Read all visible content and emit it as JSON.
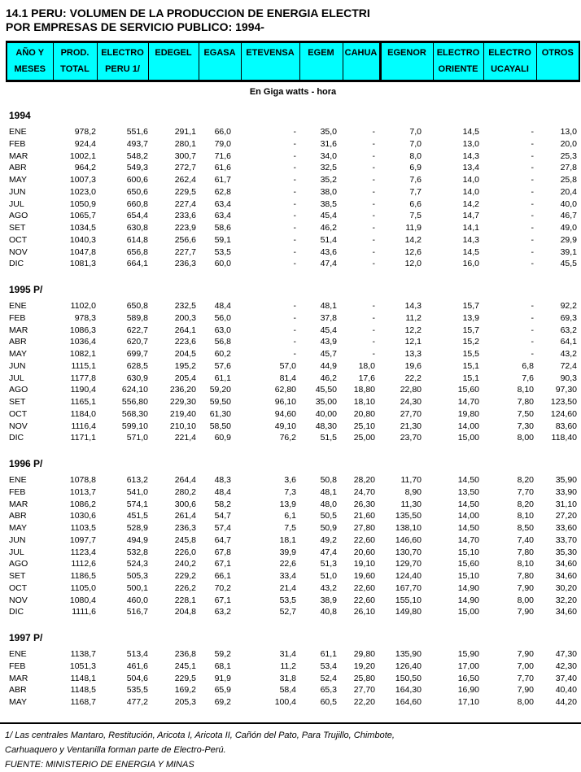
{
  "page": {
    "title_line1": "14.1  PERU: VOLUMEN DE LA PRODUCCION DE ENERGIA ELECTRI",
    "title_line2": "POR EMPRESAS DE SERVICIO PUBLICO: 1994-",
    "unit_label": "En Giga watts - hora"
  },
  "colors": {
    "header_bg": "#00FFFF",
    "text": "#000000",
    "background": "#FFFFFF"
  },
  "table": {
    "columns": [
      {
        "line1": "AÑO Y",
        "line2": "MESES"
      },
      {
        "line1": "PROD.",
        "line2": "TOTAL"
      },
      {
        "line1": "ELECTRO",
        "line2": "PERU 1/"
      },
      {
        "line1": "EDEGEL",
        "line2": ""
      },
      {
        "line1": "EGASA",
        "line2": ""
      },
      {
        "line1": "ETEVENSA",
        "line2": ""
      },
      {
        "line1": "EGEM",
        "line2": ""
      },
      {
        "line1": "CAHUA",
        "line2": ""
      },
      {
        "line1": "EGENOR",
        "line2": ""
      },
      {
        "line1": "ELECTRO",
        "line2": "ORIENTE"
      },
      {
        "line1": "ELECTRO",
        "line2": "UCAYALI"
      },
      {
        "line1": "OTROS",
        "line2": ""
      }
    ],
    "sections": [
      {
        "label": "1994",
        "rows": [
          [
            "ENE",
            "978,2",
            "551,6",
            "291,1",
            "66,0",
            "-",
            "35,0",
            "-",
            "7,0",
            "14,5",
            "-",
            "13,0"
          ],
          [
            "FEB",
            "924,4",
            "493,7",
            "280,1",
            "79,0",
            "-",
            "31,6",
            "-",
            "7,0",
            "13,0",
            "-",
            "20,0"
          ],
          [
            "MAR",
            "1002,1",
            "548,2",
            "300,7",
            "71,6",
            "-",
            "34,0",
            "-",
            "8,0",
            "14,3",
            "-",
            "25,3"
          ],
          [
            "ABR",
            "964,2",
            "549,3",
            "272,7",
            "61,6",
            "-",
            "32,5",
            "-",
            "6,9",
            "13,4",
            "-",
            "27,8"
          ],
          [
            "MAY",
            "1007,3",
            "600,6",
            "262,4",
            "61,7",
            "-",
            "35,2",
            "-",
            "7,6",
            "14,0",
            "-",
            "25,8"
          ],
          [
            "JUN",
            "1023,0",
            "650,6",
            "229,5",
            "62,8",
            "-",
            "38,0",
            "-",
            "7,7",
            "14,0",
            "-",
            "20,4"
          ],
          [
            "JUL",
            "1050,9",
            "660,8",
            "227,4",
            "63,4",
            "-",
            "38,5",
            "-",
            "6,6",
            "14,2",
            "-",
            "40,0"
          ],
          [
            "AGO",
            "1065,7",
            "654,4",
            "233,6",
            "63,4",
            "-",
            "45,4",
            "-",
            "7,5",
            "14,7",
            "-",
            "46,7"
          ],
          [
            "SET",
            "1034,5",
            "630,8",
            "223,9",
            "58,6",
            "-",
            "46,2",
            "-",
            "11,9",
            "14,1",
            "-",
            "49,0"
          ],
          [
            "OCT",
            "1040,3",
            "614,8",
            "256,6",
            "59,1",
            "-",
            "51,4",
            "-",
            "14,2",
            "14,3",
            "-",
            "29,9"
          ],
          [
            "NOV",
            "1047,8",
            "656,8",
            "227,7",
            "53,5",
            "-",
            "43,6",
            "-",
            "12,6",
            "14,5",
            "-",
            "39,1"
          ],
          [
            "DIC",
            "1081,3",
            "664,1",
            "236,3",
            "60,0",
            "-",
            "47,4",
            "-",
            "12,0",
            "16,0",
            "-",
            "45,5"
          ]
        ]
      },
      {
        "label": "1995 P/",
        "rows": [
          [
            "ENE",
            "1102,0",
            "650,8",
            "232,5",
            "48,4",
            "-",
            "48,1",
            "-",
            "14,3",
            "15,7",
            "-",
            "92,2"
          ],
          [
            "FEB",
            "978,3",
            "589,8",
            "200,3",
            "56,0",
            "-",
            "37,8",
            "-",
            "11,2",
            "13,9",
            "-",
            "69,3"
          ],
          [
            "MAR",
            "1086,3",
            "622,7",
            "264,1",
            "63,0",
            "-",
            "45,4",
            "-",
            "12,2",
            "15,7",
            "-",
            "63,2"
          ],
          [
            "ABR",
            "1036,4",
            "620,7",
            "223,6",
            "56,8",
            "-",
            "43,9",
            "-",
            "12,1",
            "15,2",
            "-",
            "64,1"
          ],
          [
            "MAY",
            "1082,1",
            "699,7",
            "204,5",
            "60,2",
            "-",
            "45,7",
            "-",
            "13,3",
            "15,5",
            "-",
            "43,2"
          ],
          [
            "JUN",
            "1115,1",
            "628,5",
            "195,2",
            "57,6",
            "57,0",
            "44,9",
            "18,0",
            "19,6",
            "15,1",
            "6,8",
            "72,4"
          ],
          [
            "JUL",
            "1177,8",
            "630,9",
            "205,4",
            "61,1",
            "81,4",
            "46,2",
            "17,6",
            "22,2",
            "15,1",
            "7,6",
            "90,3"
          ],
          [
            "AGO",
            "1190,4",
            "624,10",
            "236,20",
            "59,20",
            "62,80",
            "45,50",
            "18,80",
            "22,80",
            "15,60",
            "8,10",
            "97,30"
          ],
          [
            "SET",
            "1165,1",
            "556,80",
            "229,30",
            "59,50",
            "96,10",
            "35,00",
            "18,10",
            "24,30",
            "14,70",
            "7,80",
            "123,50"
          ],
          [
            "OCT",
            "1184,0",
            "568,30",
            "219,40",
            "61,30",
            "94,60",
            "40,00",
            "20,80",
            "27,70",
            "19,80",
            "7,50",
            "124,60"
          ],
          [
            "NOV",
            "1116,4",
            "599,10",
            "210,10",
            "58,50",
            "49,10",
            "48,30",
            "25,10",
            "21,30",
            "14,00",
            "7,30",
            "83,60"
          ],
          [
            "DIC",
            "1171,1",
            "571,0",
            "221,4",
            "60,9",
            "76,2",
            "51,5",
            "25,00",
            "23,70",
            "15,00",
            "8,00",
            "118,40"
          ]
        ]
      },
      {
        "label": "1996 P/",
        "rows": [
          [
            "ENE",
            "1078,8",
            "613,2",
            "264,4",
            "48,3",
            "3,6",
            "50,8",
            "28,20",
            "11,70",
            "14,50",
            "8,20",
            "35,90"
          ],
          [
            "FEB",
            "1013,7",
            "541,0",
            "280,2",
            "48,4",
            "7,3",
            "48,1",
            "24,70",
            "8,90",
            "13,50",
            "7,70",
            "33,90"
          ],
          [
            "MAR",
            "1086,2",
            "574,1",
            "300,6",
            "58,2",
            "13,9",
            "48,0",
            "26,30",
            "11,30",
            "14,50",
            "8,20",
            "31,10"
          ],
          [
            "ABR",
            "1030,6",
            "451,5",
            "261,4",
            "54,7",
            "6,1",
            "50,5",
            "21,60",
            "135,50",
            "14,00",
            "8,10",
            "27,20"
          ],
          [
            "MAY",
            "1103,5",
            "528,9",
            "236,3",
            "57,4",
            "7,5",
            "50,9",
            "27,80",
            "138,10",
            "14,50",
            "8,50",
            "33,60"
          ],
          [
            "JUN",
            "1097,7",
            "494,9",
            "245,8",
            "64,7",
            "18,1",
            "49,2",
            "22,60",
            "146,60",
            "14,70",
            "7,40",
            "33,70"
          ],
          [
            "JUL",
            "1123,4",
            "532,8",
            "226,0",
            "67,8",
            "39,9",
            "47,4",
            "20,60",
            "130,70",
            "15,10",
            "7,80",
            "35,30"
          ],
          [
            "AGO",
            "1112,6",
            "524,3",
            "240,2",
            "67,1",
            "22,6",
            "51,3",
            "19,10",
            "129,70",
            "15,60",
            "8,10",
            "34,60"
          ],
          [
            "SET",
            "1186,5",
            "505,3",
            "229,2",
            "66,1",
            "33,4",
            "51,0",
            "19,60",
            "124,40",
            "15,10",
            "7,80",
            "34,60"
          ],
          [
            "OCT",
            "1105,0",
            "500,1",
            "226,2",
            "70,2",
            "21,4",
            "43,2",
            "22,60",
            "167,70",
            "14,90",
            "7,90",
            "30,20"
          ],
          [
            "NOV",
            "1080,4",
            "460,0",
            "228,1",
            "67,1",
            "53,5",
            "38,9",
            "22,60",
            "155,10",
            "14,90",
            "8,00",
            "32,20"
          ],
          [
            "DIC",
            "1111,6",
            "516,7",
            "204,8",
            "63,2",
            "52,7",
            "40,8",
            "26,10",
            "149,80",
            "15,00",
            "7,90",
            "34,60"
          ]
        ]
      },
      {
        "label": "1997 P/",
        "rows": [
          [
            "ENE",
            "1138,7",
            "513,4",
            "236,8",
            "59,2",
            "31,4",
            "61,1",
            "29,80",
            "135,90",
            "15,90",
            "7,90",
            "47,30"
          ],
          [
            "FEB",
            "1051,3",
            "461,6",
            "245,1",
            "68,1",
            "11,2",
            "53,4",
            "19,20",
            "126,40",
            "17,00",
            "7,00",
            "42,30"
          ],
          [
            "MAR",
            "1148,1",
            "504,6",
            "229,5",
            "91,9",
            "31,8",
            "52,4",
            "25,80",
            "150,50",
            "16,50",
            "7,70",
            "37,40"
          ],
          [
            "ABR",
            "1148,5",
            "535,5",
            "169,2",
            "65,9",
            "58,4",
            "65,3",
            "27,70",
            "164,30",
            "16,90",
            "7,90",
            "40,40"
          ],
          [
            "MAY",
            "1168,7",
            "477,2",
            "205,3",
            "69,2",
            "100,4",
            "60,5",
            "22,20",
            "164,60",
            "17,10",
            "8,00",
            "44,20"
          ]
        ]
      }
    ]
  },
  "footnotes": [
    "1/ Las centrales Mantaro, Restitución, Aricota I, Aricota II, Cañón del Pato, Para Trujillo, Chimbote,",
    "Carhuaquero y Ventanilla forman parte de Electro-Perú.",
    "FUENTE: MINISTERIO DE ENERGIA Y MINAS"
  ]
}
